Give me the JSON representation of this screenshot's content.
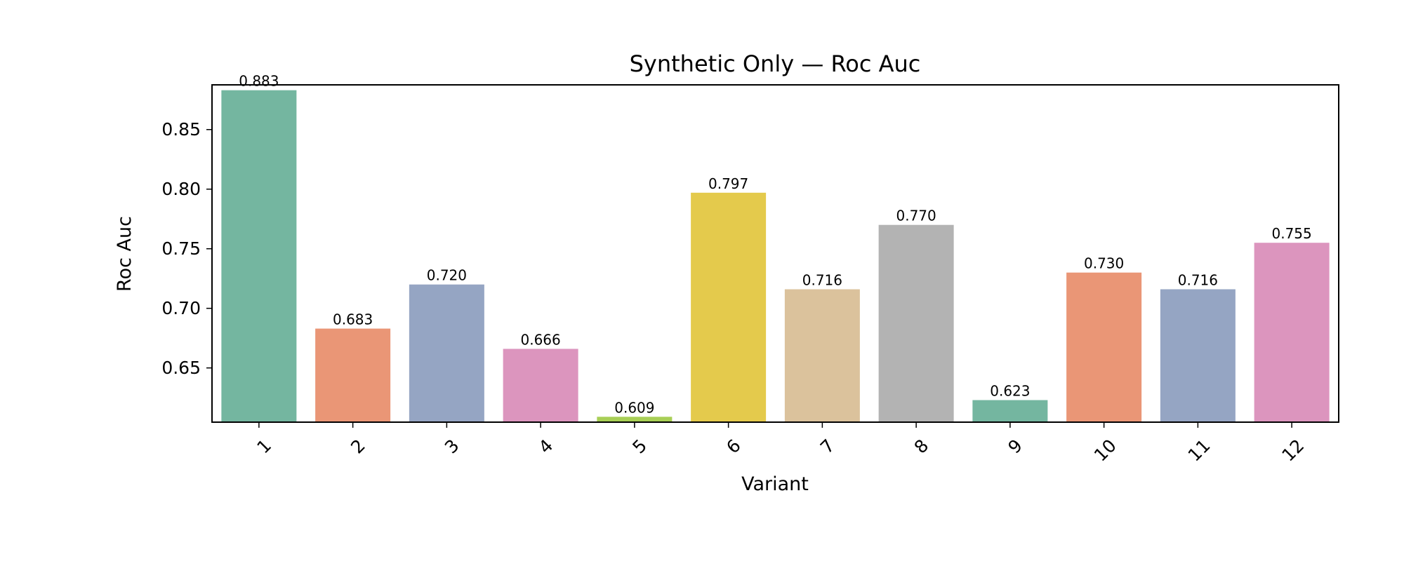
{
  "chart_data": {
    "type": "bar",
    "title": "Synthetic Only — Roc Auc",
    "xlabel": "Variant",
    "ylabel": "Roc Auc",
    "ylim": [
      0.6045,
      0.8875
    ],
    "yticks": [
      0.65,
      0.7,
      0.75,
      0.8,
      0.85
    ],
    "ytick_labels": [
      "0.65",
      "0.70",
      "0.75",
      "0.80",
      "0.85"
    ],
    "categories": [
      "1",
      "2",
      "3",
      "4",
      "5",
      "6",
      "7",
      "8",
      "9",
      "10",
      "11",
      "12"
    ],
    "values": [
      0.883,
      0.683,
      0.72,
      0.666,
      0.609,
      0.797,
      0.716,
      0.77,
      0.623,
      0.73,
      0.716,
      0.755
    ],
    "value_labels": [
      "0.883",
      "0.683",
      "0.720",
      "0.666",
      "0.609",
      "0.797",
      "0.716",
      "0.770",
      "0.623",
      "0.730",
      "0.716",
      "0.755"
    ],
    "colors": [
      "#74b6a0",
      "#ea9676",
      "#95a5c3",
      "#dc95be",
      "#a8cf56",
      "#e4ca4c",
      "#dbc29c",
      "#b3b3b3",
      "#74b6a0",
      "#ea9676",
      "#95a5c3",
      "#dc95be"
    ],
    "grid": false,
    "legend": "none"
  }
}
